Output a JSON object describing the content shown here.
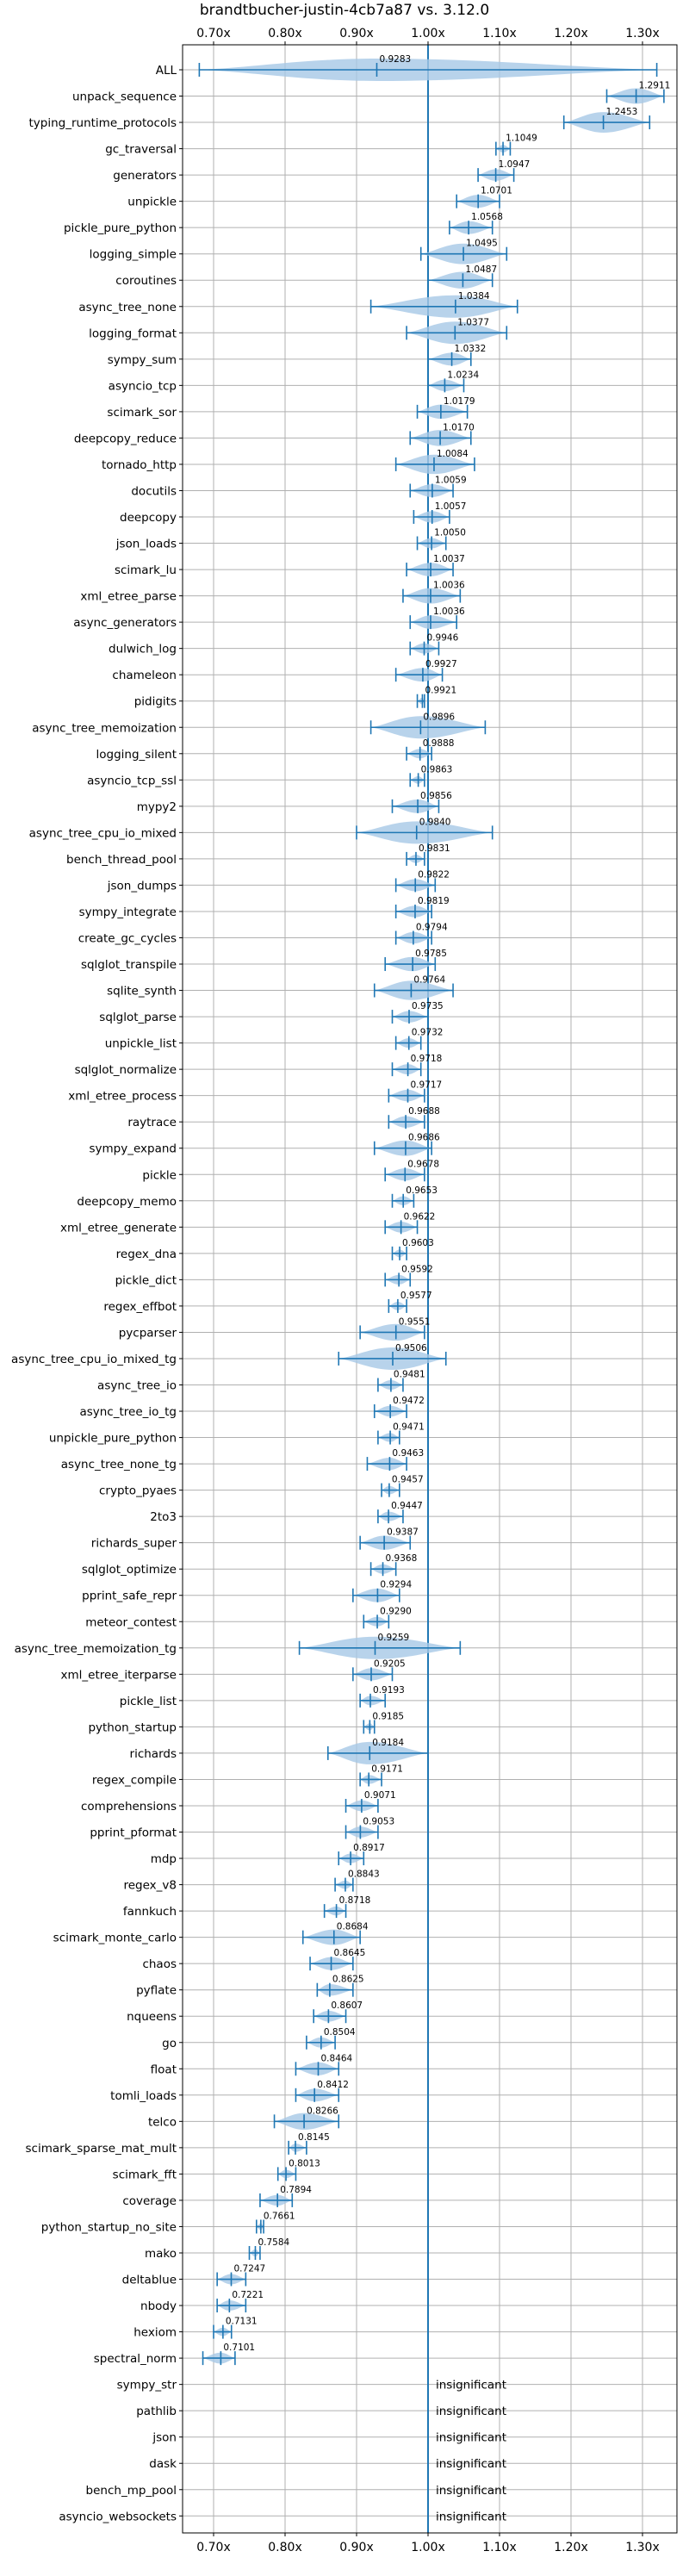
{
  "chart_data": {
    "type": "violin",
    "title": "brandtbucher-justin-4cb7a87 vs. 3.12.0",
    "xlabel": "",
    "ylabel": "",
    "xlim": [
      0.65,
      1.36
    ],
    "xticks": [
      0.7,
      0.8,
      0.9,
      1.0,
      1.1,
      1.2,
      1.3
    ],
    "xtick_labels": [
      "0.70x",
      "0.80x",
      "0.90x",
      "1.00x",
      "1.10x",
      "1.20x",
      "1.30x"
    ],
    "reference_line": 1.0,
    "grid": true,
    "colors": {
      "violin": "#a6c8e6",
      "line": "#1f77b4",
      "text": "#000000",
      "grid": "#b0b0b0"
    },
    "insignificant_label": "insignificant",
    "categories": [
      "ALL",
      "unpack_sequence",
      "typing_runtime_protocols",
      "gc_traversal",
      "generators",
      "unpickle",
      "pickle_pure_python",
      "logging_simple",
      "coroutines",
      "async_tree_none",
      "logging_format",
      "sympy_sum",
      "asyncio_tcp",
      "scimark_sor",
      "deepcopy_reduce",
      "tornado_http",
      "docutils",
      "deepcopy",
      "json_loads",
      "scimark_lu",
      "xml_etree_parse",
      "async_generators",
      "dulwich_log",
      "chameleon",
      "pidigits",
      "async_tree_memoization",
      "logging_silent",
      "asyncio_tcp_ssl",
      "mypy2",
      "async_tree_cpu_io_mixed",
      "bench_thread_pool",
      "json_dumps",
      "sympy_integrate",
      "create_gc_cycles",
      "sqlglot_transpile",
      "sqlite_synth",
      "sqlglot_parse",
      "unpickle_list",
      "sqlglot_normalize",
      "xml_etree_process",
      "raytrace",
      "sympy_expand",
      "pickle",
      "deepcopy_memo",
      "xml_etree_generate",
      "regex_dna",
      "pickle_dict",
      "regex_effbot",
      "pycparser",
      "async_tree_cpu_io_mixed_tg",
      "async_tree_io",
      "async_tree_io_tg",
      "unpickle_pure_python",
      "async_tree_none_tg",
      "crypto_pyaes",
      "2to3",
      "richards_super",
      "sqlglot_optimize",
      "pprint_safe_repr",
      "meteor_contest",
      "async_tree_memoization_tg",
      "xml_etree_iterparse",
      "pickle_list",
      "python_startup",
      "richards",
      "regex_compile",
      "comprehensions",
      "pprint_pformat",
      "mdp",
      "regex_v8",
      "fannkuch",
      "scimark_monte_carlo",
      "chaos",
      "pyflate",
      "nqueens",
      "go",
      "float",
      "tomli_loads",
      "telco",
      "scimark_sparse_mat_mult",
      "scimark_fft",
      "coverage",
      "python_startup_no_site",
      "mako",
      "deltablue",
      "nbody",
      "hexiom",
      "spectral_norm",
      "sympy_str",
      "pathlib",
      "json",
      "dask",
      "bench_mp_pool",
      "asyncio_websockets"
    ],
    "values": [
      0.9283,
      1.2911,
      1.2453,
      1.1049,
      1.0947,
      1.0701,
      1.0568,
      1.0495,
      1.0487,
      1.0384,
      1.0377,
      1.0332,
      1.0234,
      1.0179,
      1.017,
      1.0084,
      1.0059,
      1.0057,
      1.005,
      1.0037,
      1.0036,
      1.0036,
      0.9946,
      0.9927,
      0.9921,
      0.9896,
      0.9888,
      0.9863,
      0.9856,
      0.984,
      0.9831,
      0.9822,
      0.9819,
      0.9794,
      0.9785,
      0.9764,
      0.9735,
      0.9732,
      0.9718,
      0.9717,
      0.9688,
      0.9686,
      0.9678,
      0.9653,
      0.9622,
      0.9603,
      0.9592,
      0.9577,
      0.9551,
      0.9506,
      0.9481,
      0.9472,
      0.9471,
      0.9463,
      0.9457,
      0.9447,
      0.9387,
      0.9368,
      0.9294,
      0.929,
      0.9259,
      0.9205,
      0.9193,
      0.9185,
      0.9184,
      0.9171,
      0.9071,
      0.9053,
      0.8917,
      0.8843,
      0.8718,
      0.8684,
      0.8645,
      0.8625,
      0.8607,
      0.8504,
      0.8464,
      0.8412,
      0.8266,
      0.8145,
      0.8013,
      0.7894,
      0.7661,
      0.7584,
      0.7247,
      0.7221,
      0.7131,
      0.7101,
      null,
      null,
      null,
      null,
      null,
      null
    ],
    "value_labels": [
      "0.9283",
      "1.2911",
      "1.2453",
      "1.1049",
      "1.0947",
      "1.0701",
      "1.0568",
      "1.0495",
      "1.0487",
      "1.0384",
      "1.0377",
      "1.0332",
      "1.0234",
      "1.0179",
      "1.0170",
      "1.0084",
      "1.0059",
      "1.0057",
      "1.0050",
      "1.0037",
      "1.0036",
      "1.0036",
      "0.9946",
      "0.9927",
      "0.9921",
      "0.9896",
      "0.9888",
      "0.9863",
      "0.9856",
      "0.9840",
      "0.9831",
      "0.9822",
      "0.9819",
      "0.9794",
      "0.9785",
      "0.9764",
      "0.9735",
      "0.9732",
      "0.9718",
      "0.9717",
      "0.9688",
      "0.9686",
      "0.9678",
      "0.9653",
      "0.9622",
      "0.9603",
      "0.9592",
      "0.9577",
      "0.9551",
      "0.9506",
      "0.9481",
      "0.9472",
      "0.9471",
      "0.9463",
      "0.9457",
      "0.9447",
      "0.9387",
      "0.9368",
      "0.9294",
      "0.9290",
      "0.9259",
      "0.9205",
      "0.9193",
      "0.9185",
      "0.9184",
      "0.9171",
      "0.9071",
      "0.9053",
      "0.8917",
      "0.8843",
      "0.8718",
      "0.8684",
      "0.8645",
      "0.8625",
      "0.8607",
      "0.8504",
      "0.8464",
      "0.8412",
      "0.8266",
      "0.8145",
      "0.8013",
      "0.7894",
      "0.7661",
      "0.7584",
      "0.7247",
      "0.7221",
      "0.7131",
      "0.7101",
      "",
      "",
      "",
      "",
      "",
      ""
    ],
    "ranges": [
      [
        0.68,
        1.32
      ],
      [
        1.25,
        1.33
      ],
      [
        1.19,
        1.31
      ],
      [
        1.095,
        1.115
      ],
      [
        1.07,
        1.12
      ],
      [
        1.04,
        1.1
      ],
      [
        1.03,
        1.09
      ],
      [
        0.99,
        1.11
      ],
      [
        1.0,
        1.09
      ],
      [
        0.92,
        1.125
      ],
      [
        0.97,
        1.11
      ],
      [
        1.0,
        1.06
      ],
      [
        1.0,
        1.05
      ],
      [
        0.985,
        1.055
      ],
      [
        0.975,
        1.06
      ],
      [
        0.955,
        1.065
      ],
      [
        0.975,
        1.035
      ],
      [
        0.98,
        1.03
      ],
      [
        0.985,
        1.025
      ],
      [
        0.97,
        1.035
      ],
      [
        0.965,
        1.045
      ],
      [
        0.975,
        1.04
      ],
      [
        0.975,
        1.015
      ],
      [
        0.955,
        1.02
      ],
      [
        0.985,
        0.995
      ],
      [
        0.92,
        1.08
      ],
      [
        0.97,
        1.005
      ],
      [
        0.975,
        0.995
      ],
      [
        0.95,
        1.015
      ],
      [
        0.9,
        1.09
      ],
      [
        0.97,
        0.995
      ],
      [
        0.955,
        1.01
      ],
      [
        0.955,
        1.005
      ],
      [
        0.955,
        1.005
      ],
      [
        0.94,
        1.01
      ],
      [
        0.925,
        1.035
      ],
      [
        0.95,
        1.0
      ],
      [
        0.955,
        0.99
      ],
      [
        0.95,
        0.99
      ],
      [
        0.945,
        0.995
      ],
      [
        0.945,
        0.995
      ],
      [
        0.925,
        1.005
      ],
      [
        0.94,
        0.995
      ],
      [
        0.95,
        0.98
      ],
      [
        0.94,
        0.985
      ],
      [
        0.95,
        0.97
      ],
      [
        0.94,
        0.975
      ],
      [
        0.945,
        0.97
      ],
      [
        0.905,
        0.995
      ],
      [
        0.875,
        1.025
      ],
      [
        0.93,
        0.965
      ],
      [
        0.925,
        0.97
      ],
      [
        0.93,
        0.96
      ],
      [
        0.915,
        0.97
      ],
      [
        0.935,
        0.96
      ],
      [
        0.93,
        0.965
      ],
      [
        0.905,
        0.975
      ],
      [
        0.92,
        0.955
      ],
      [
        0.895,
        0.96
      ],
      [
        0.91,
        0.945
      ],
      [
        0.82,
        1.045
      ],
      [
        0.895,
        0.95
      ],
      [
        0.905,
        0.94
      ],
      [
        0.91,
        0.925
      ],
      [
        0.86,
        1.0
      ],
      [
        0.905,
        0.935
      ],
      [
        0.885,
        0.93
      ],
      [
        0.885,
        0.93
      ],
      [
        0.875,
        0.91
      ],
      [
        0.87,
        0.895
      ],
      [
        0.855,
        0.885
      ],
      [
        0.825,
        0.905
      ],
      [
        0.835,
        0.895
      ],
      [
        0.845,
        0.895
      ],
      [
        0.84,
        0.885
      ],
      [
        0.83,
        0.87
      ],
      [
        0.815,
        0.875
      ],
      [
        0.815,
        0.875
      ],
      [
        0.785,
        0.875
      ],
      [
        0.805,
        0.83
      ],
      [
        0.79,
        0.815
      ],
      [
        0.765,
        0.81
      ],
      [
        0.76,
        0.77
      ],
      [
        0.75,
        0.765
      ],
      [
        0.705,
        0.745
      ],
      [
        0.705,
        0.745
      ],
      [
        0.7,
        0.725
      ],
      [
        0.685,
        0.73
      ],
      null,
      null,
      null,
      null,
      null,
      null
    ]
  }
}
